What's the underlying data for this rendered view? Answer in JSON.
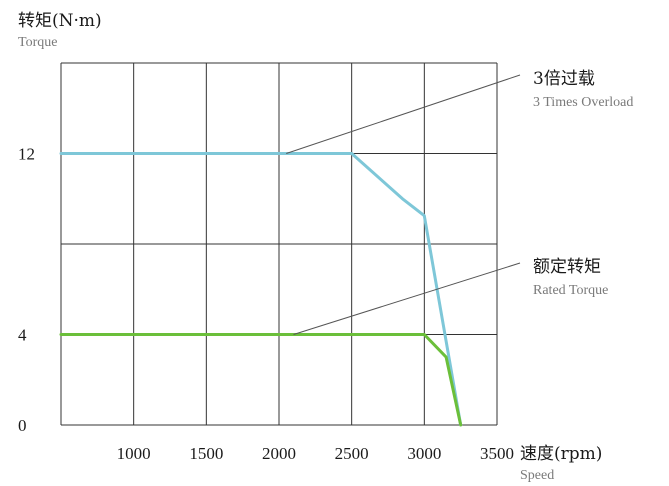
{
  "chart_data": {
    "type": "line",
    "y_title_cn": "转矩(N·m)",
    "y_title_en": "Torque",
    "x_title_cn": "速度(rpm)",
    "x_title_en": "Speed",
    "x_ticks": [
      "1000",
      "1500",
      "2000",
      "2500",
      "3000",
      "3500"
    ],
    "y_ticks": [
      {
        "value": 12,
        "label": "12"
      },
      {
        "value": 4,
        "label": "4"
      },
      {
        "value": 0,
        "label": "0"
      }
    ],
    "xlim": [
      500,
      3500
    ],
    "ylim": [
      0,
      16
    ],
    "grid": true,
    "series": [
      {
        "name_cn": "3倍过载",
        "name_en": "3 Times Overload",
        "color": "#7ec7d8",
        "x": [
          500,
          2500,
          2850,
          3000,
          3250
        ],
        "y": [
          12,
          12,
          10,
          9.25,
          0
        ]
      },
      {
        "name_cn": "额定转矩",
        "name_en": "Rated Torque",
        "color": "#6bbf3a",
        "x": [
          500,
          3000,
          3150,
          3250
        ],
        "y": [
          4,
          4,
          3,
          0
        ]
      }
    ],
    "annotations": [
      {
        "series": 0,
        "point_x": 2050,
        "point_y": 12
      },
      {
        "series": 1,
        "point_x": 2100,
        "point_y": 4
      }
    ]
  }
}
